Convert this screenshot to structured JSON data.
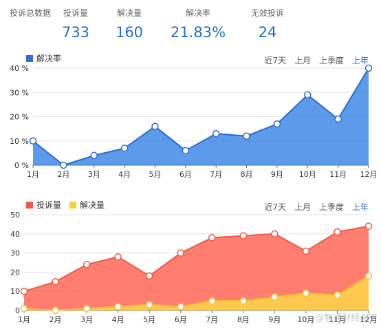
{
  "stats": [
    {
      "label": "投诉总数据",
      "value": ""
    },
    {
      "label": "投诉量",
      "value": "733"
    },
    {
      "label": "解决量",
      "value": "160"
    },
    {
      "label": "解决率",
      "value": "21.83%"
    },
    {
      "label": "无效投诉",
      "value": "24"
    }
  ],
  "range_tabs": [
    "近7天",
    "上月",
    "上季度",
    "上年"
  ],
  "active_range": "上年",
  "watermark": "@智通财经APP",
  "colors": {
    "accent": "#1f6fc6",
    "rate": "#2f7ee3",
    "complaints": "#ff5a47",
    "resolved": "#ffd24a"
  },
  "chart_data": [
    {
      "type": "area",
      "legend": [
        "解决率"
      ],
      "categories": [
        "1月",
        "2月",
        "3月",
        "4月",
        "5月",
        "6月",
        "7月",
        "8月",
        "9月",
        "10月",
        "11月",
        "12月"
      ],
      "series": [
        {
          "name": "解决率",
          "values": [
            10,
            0,
            4,
            7,
            16,
            6,
            13,
            12,
            17,
            29,
            19,
            40
          ]
        }
      ],
      "ylim": [
        0,
        40
      ],
      "yticks": [
        "0 %",
        "10 %",
        "20 %",
        "30 %",
        "40 %"
      ],
      "grid": true
    },
    {
      "type": "area",
      "legend": [
        "投诉量",
        "解决量"
      ],
      "categories": [
        "1月",
        "2月",
        "3月",
        "4月",
        "5月",
        "6月",
        "7月",
        "8月",
        "9月",
        "10月",
        "11月",
        "12月"
      ],
      "series": [
        {
          "name": "投诉量",
          "values": [
            10,
            15,
            24,
            28,
            18,
            30,
            38,
            39,
            40,
            31,
            41,
            44
          ]
        },
        {
          "name": "解决量",
          "values": [
            1,
            0,
            1,
            2,
            3,
            2,
            5,
            5,
            7,
            9,
            8,
            18
          ]
        }
      ],
      "ylim": [
        0,
        50
      ],
      "yticks": [
        "0",
        "10",
        "20",
        "30",
        "40",
        "50"
      ],
      "grid": true
    }
  ]
}
